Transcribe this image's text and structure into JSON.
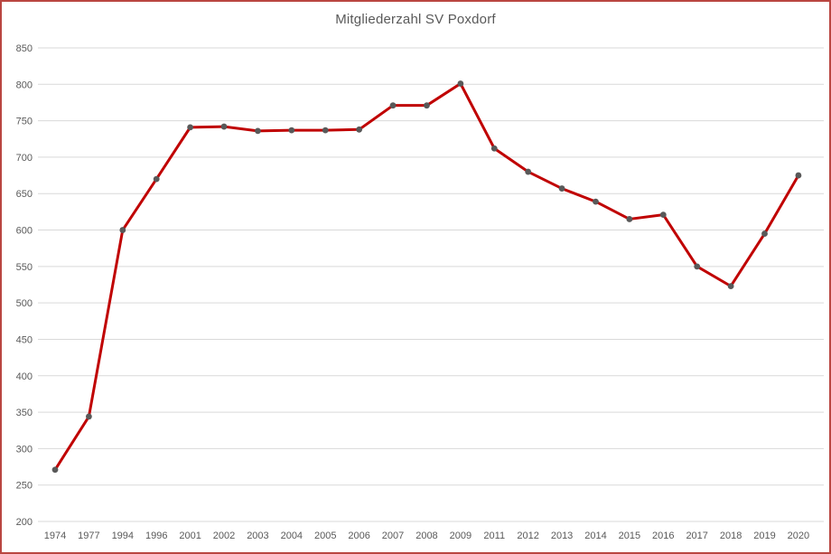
{
  "chart_data": {
    "type": "line",
    "title": "Mitgliederzahl SV Poxdorf",
    "categories": [
      "1974",
      "1977",
      "1994",
      "1996",
      "2001",
      "2002",
      "2003",
      "2004",
      "2005",
      "2006",
      "2007",
      "2008",
      "2009",
      "2011",
      "2012",
      "2013",
      "2014",
      "2015",
      "2016",
      "2017",
      "2018",
      "2019",
      "2020"
    ],
    "values": [
      271,
      344,
      600,
      670,
      741,
      742,
      736,
      737,
      737,
      738,
      771,
      771,
      801,
      712,
      680,
      657,
      639,
      615,
      621,
      550,
      523,
      595,
      675
    ],
    "series_name": "Mitgliederzahl",
    "xlabel": "",
    "ylabel": "",
    "ylim": [
      200,
      850
    ],
    "ytick_step": 50,
    "ytick_labels": [
      "200",
      "250",
      "300",
      "350",
      "400",
      "450",
      "500",
      "550",
      "600",
      "650",
      "700",
      "750",
      "800",
      "850"
    ],
    "grid": true,
    "legend": "none",
    "colors": {
      "line": "#c00000",
      "marker": "#595959",
      "grid": "#d9d9d9",
      "tick_text": "#595959",
      "title_text": "#595959",
      "frame_border": "#b94641",
      "background": "#ffffff"
    }
  }
}
